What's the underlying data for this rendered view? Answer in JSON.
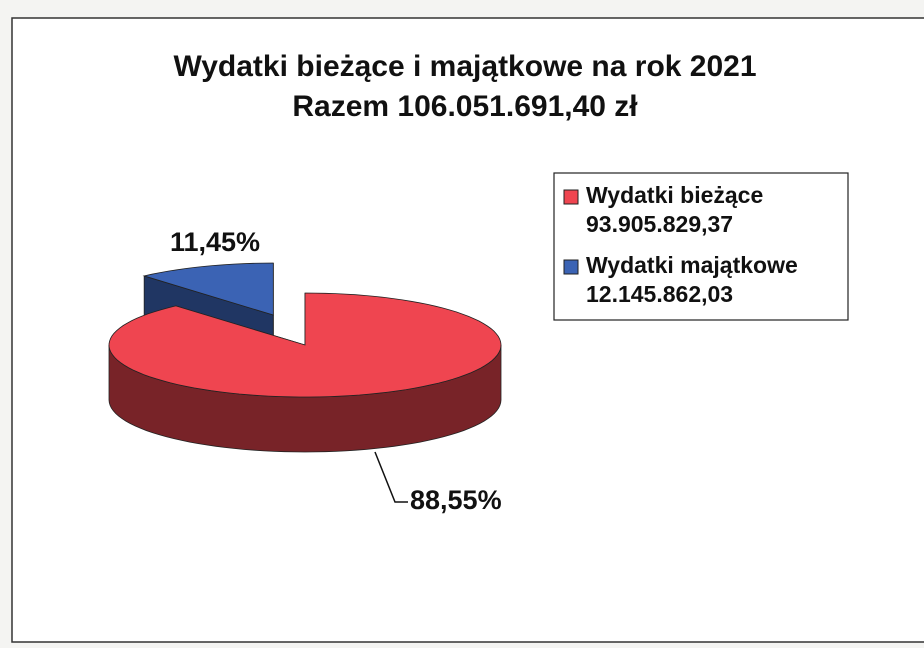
{
  "chart_data": {
    "type": "pie3d",
    "title": "Wydatki bieżące i majątkowe na rok 2021",
    "subtitle": "Razem 106.051.691,40 zł",
    "categories": [
      "Wydatki bieżące",
      "Wydatki majątkowe"
    ],
    "amount_labels": [
      "93.905.829,37",
      "12.145.862,03"
    ],
    "values": [
      88.55,
      11.45
    ],
    "value_labels": [
      "88,55%",
      "11,45%"
    ],
    "colors": [
      "#ef4550",
      "#3b63b4"
    ],
    "legend": "right"
  }
}
